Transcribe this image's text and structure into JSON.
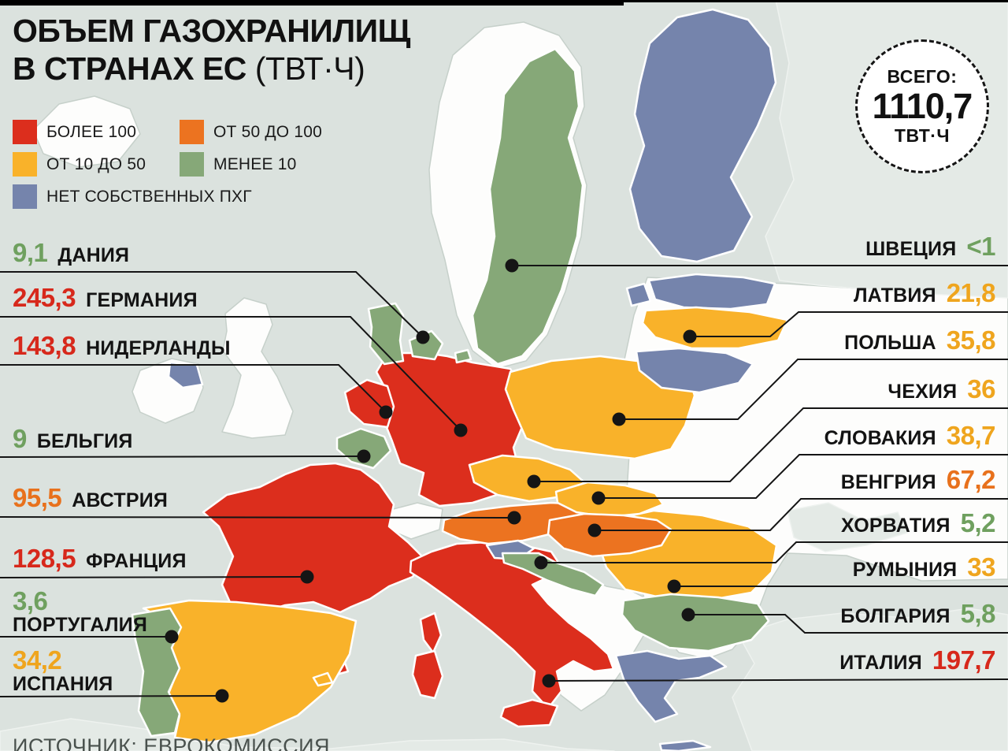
{
  "title": {
    "line1": "ОБЪЕМ ГАЗОХРАНИЛИЩ",
    "line2_bold": "В СТРАНАХ ЕС",
    "line2_unit": "(ТВТ·Ч)"
  },
  "total": {
    "label": "ВСЕГО:",
    "value": "1110,7",
    "unit": "ТВТ·Ч"
  },
  "palette": {
    "red": "#dc2e1d",
    "orange": "#ec7320",
    "yellow": "#f9b22a",
    "green": "#86a878",
    "blue": "#7584ac"
  },
  "value_colors": {
    "more100": "#d7281b",
    "from50to100": "#e8711c",
    "from10to50": "#efa51e",
    "less10": "#6fa05f"
  },
  "legend": [
    {
      "label": "БОЛЕЕ 100",
      "color_key": "red",
      "category": "more100"
    },
    {
      "label": "ОТ 50 ДО 100",
      "color_key": "orange",
      "category": "from50to100"
    },
    {
      "label": "ОТ 10 ДО 50",
      "color_key": "yellow",
      "category": "from10to50"
    },
    {
      "label": "МЕНЕЕ 10",
      "color_key": "green",
      "category": "less10"
    },
    {
      "label": "НЕТ СОБСТВЕННЫХ ПХГ",
      "color_key": "blue",
      "category": "none"
    }
  ],
  "source": "ИСТОЧНИК: ЕВРОКОМИССИЯ",
  "chart_data": {
    "type": "choropleth-map",
    "title": "ОБЪЕМ ГАЗОХРАНИЛИЩ В СТРАНАХ ЕС (ТВТ·Ч)",
    "unit": "ТВТ·Ч",
    "total": 1110.7,
    "categories": [
      "БОЛЕЕ 100",
      "ОТ 50 ДО 100",
      "ОТ 10 ДО 50",
      "МЕНЕЕ 10",
      "НЕТ СОБСТВЕННЫХ ПХГ"
    ],
    "countries": [
      {
        "key": "denmark",
        "name": "ДАНИЯ",
        "value": "9,1",
        "numeric": 9.1,
        "category": "less10",
        "side": "left"
      },
      {
        "key": "germany",
        "name": "ГЕРМАНИЯ",
        "value": "245,3",
        "numeric": 245.3,
        "category": "more100",
        "side": "left"
      },
      {
        "key": "netherlands",
        "name": "НИДЕРЛАНДЫ",
        "value": "143,8",
        "numeric": 143.8,
        "category": "more100",
        "side": "left"
      },
      {
        "key": "belgium",
        "name": "БЕЛЬГИЯ",
        "value": "9",
        "numeric": 9,
        "category": "less10",
        "side": "left"
      },
      {
        "key": "austria",
        "name": "АВСТРИЯ",
        "value": "95,5",
        "numeric": 95.5,
        "category": "from50to100",
        "side": "left"
      },
      {
        "key": "france",
        "name": "ФРАНЦИЯ",
        "value": "128,5",
        "numeric": 128.5,
        "category": "more100",
        "side": "left"
      },
      {
        "key": "portugal",
        "name": "ПОРТУГАЛИЯ",
        "value": "3,6",
        "numeric": 3.6,
        "category": "less10",
        "side": "left"
      },
      {
        "key": "spain",
        "name": "ИСПАНИЯ",
        "value": "34,2",
        "numeric": 34.2,
        "category": "from10to50",
        "side": "left"
      },
      {
        "key": "sweden",
        "name": "ШВЕЦИЯ",
        "value": "<1",
        "numeric": 1,
        "category": "less10",
        "side": "right"
      },
      {
        "key": "latvia",
        "name": "ЛАТВИЯ",
        "value": "21,8",
        "numeric": 21.8,
        "category": "from10to50",
        "side": "right"
      },
      {
        "key": "poland",
        "name": "ПОЛЬША",
        "value": "35,8",
        "numeric": 35.8,
        "category": "from10to50",
        "side": "right"
      },
      {
        "key": "czechia",
        "name": "ЧЕХИЯ",
        "value": "36",
        "numeric": 36,
        "category": "from10to50",
        "side": "right"
      },
      {
        "key": "slovakia",
        "name": "СЛОВАКИЯ",
        "value": "38,7",
        "numeric": 38.7,
        "category": "from10to50",
        "side": "right"
      },
      {
        "key": "hungary",
        "name": "ВЕНГРИЯ",
        "value": "67,2",
        "numeric": 67.2,
        "category": "from50to100",
        "side": "right"
      },
      {
        "key": "croatia",
        "name": "ХОРВАТИЯ",
        "value": "5,2",
        "numeric": 5.2,
        "category": "less10",
        "side": "right"
      },
      {
        "key": "romania",
        "name": "РУМЫНИЯ",
        "value": "33",
        "numeric": 33,
        "category": "from10to50",
        "side": "right"
      },
      {
        "key": "bulgaria",
        "name": "БОЛГАРИЯ",
        "value": "5,8",
        "numeric": 5.8,
        "category": "less10",
        "side": "right"
      },
      {
        "key": "italy",
        "name": "ИТАЛИЯ",
        "value": "197,7",
        "numeric": 197.7,
        "category": "more100",
        "side": "right"
      }
    ]
  }
}
